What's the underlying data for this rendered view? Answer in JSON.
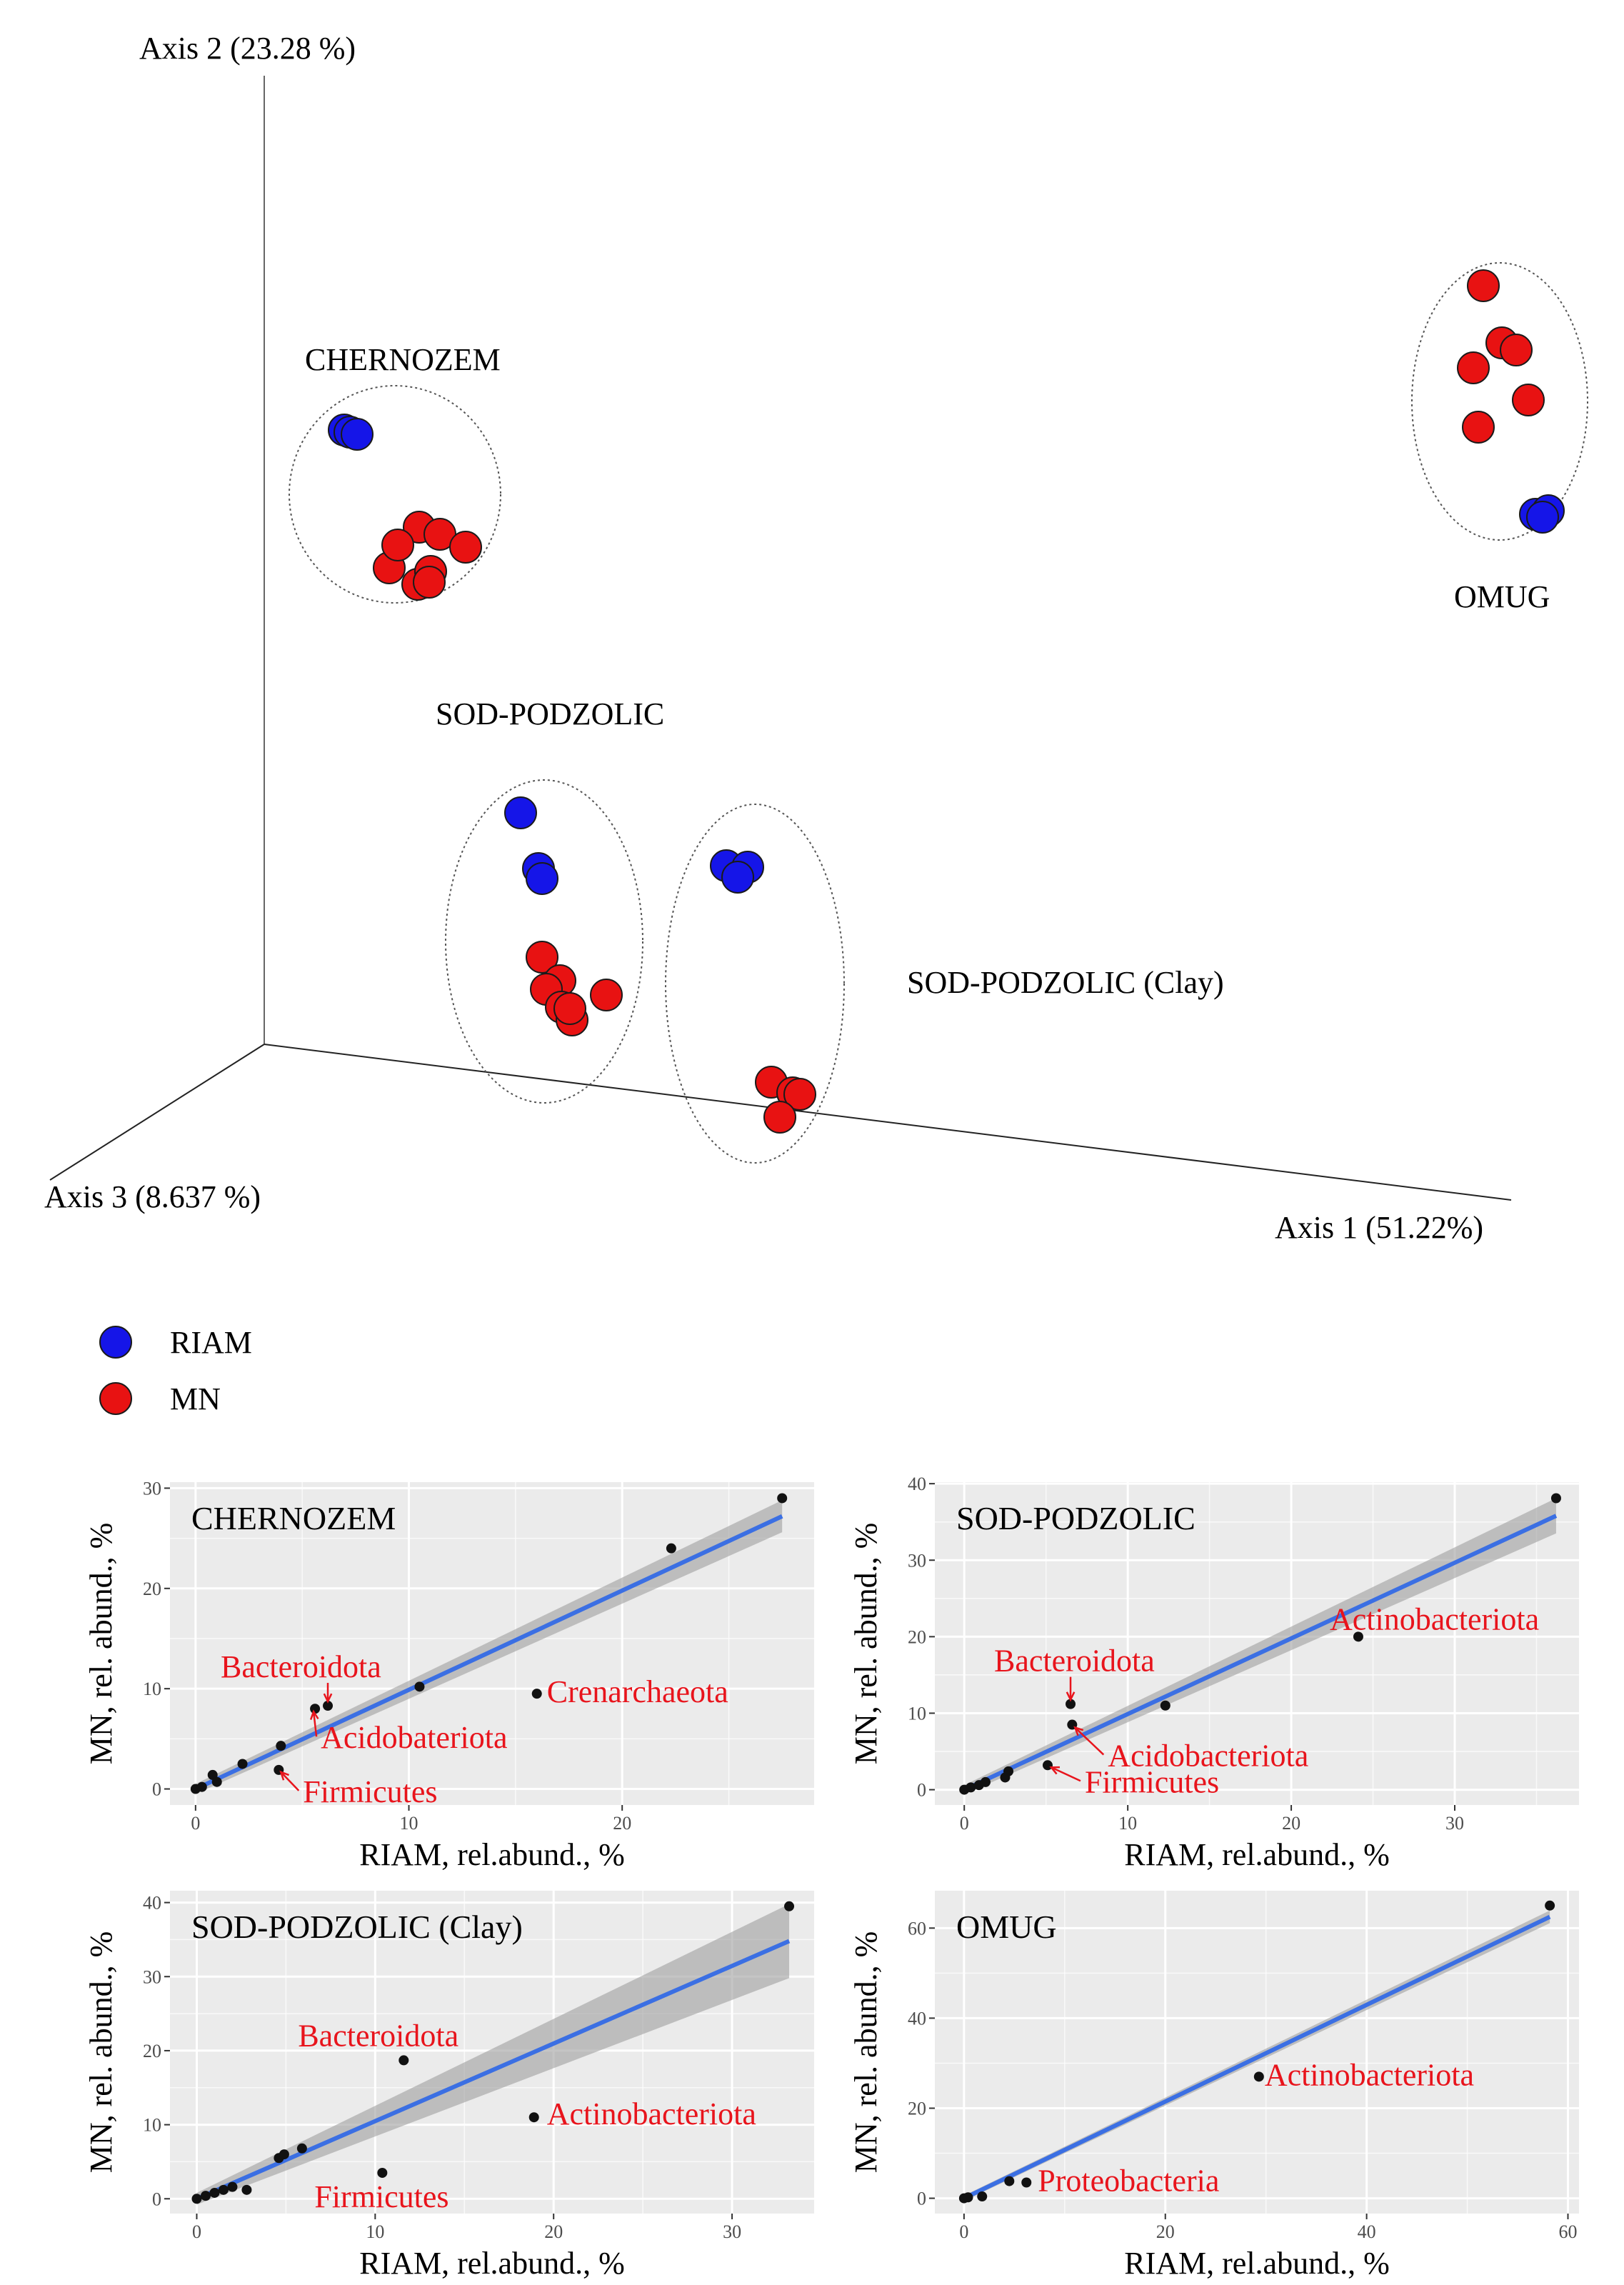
{
  "colors": {
    "riam": "#1515e8",
    "mn": "#e81212",
    "panel_bg": "#ebebeb",
    "grid": "#ffffff",
    "fit_line": "#3b6fe3",
    "ci_band": "#9e9e9e",
    "point": "#111111",
    "annotation": "#e8141c"
  },
  "chart_data": [
    {
      "type": "scatter",
      "id": "pcoa",
      "title": "",
      "axes": {
        "axis1": "Axis 1 (51.22%)",
        "axis2": "Axis 2 (23.28 %)",
        "axis3": "Axis 3 (8.637 %)"
      },
      "legend": {
        "placement": "bottom-left",
        "items": [
          {
            "label": "RIAM",
            "color_key": "riam"
          },
          {
            "label": "MN",
            "color_key": "mn"
          }
        ]
      },
      "groups": [
        {
          "label": "CHERNOZEM",
          "riam_n": 3,
          "mn_n": 8
        },
        {
          "label": "SOD-PODZOLIC",
          "riam_n": 3,
          "mn_n": 7
        },
        {
          "label": "SOD-PODZOLIC (Clay)",
          "riam_n": 3,
          "mn_n": 4
        },
        {
          "label": "OMUG",
          "riam_n": 3,
          "mn_n": 6
        }
      ]
    },
    {
      "type": "scatter",
      "id": "chernozem",
      "title": "CHERNOZEM",
      "xlabel": "RIAM, rel.abund., %",
      "ylabel": "MN, rel. abund., %",
      "xlim": [
        -1.2,
        29
      ],
      "ylim": [
        -1.6,
        30.6
      ],
      "xticks": [
        0,
        10,
        20
      ],
      "yticks": [
        0,
        10,
        20,
        30
      ],
      "fit": {
        "x0": 0,
        "y0": 0,
        "x1": 27.5,
        "y1": 27.2,
        "ci0": 0.5,
        "ci1": 1.6
      },
      "points": [
        [
          0,
          0
        ],
        [
          0.3,
          0.2
        ],
        [
          0.8,
          1.4
        ],
        [
          1,
          0.7
        ],
        [
          2.2,
          2.5
        ],
        [
          4,
          4.3
        ],
        [
          3.9,
          1.9
        ],
        [
          5.6,
          8
        ],
        [
          6.2,
          8.3
        ],
        [
          10.5,
          10.2
        ],
        [
          16,
          9.5
        ],
        [
          22.3,
          24
        ],
        [
          27.5,
          29
        ]
      ],
      "annotations": [
        {
          "text": "Bacteroidota",
          "point": [
            6.2,
            8.3
          ],
          "arrow": true
        },
        {
          "text": "Acidobateriota",
          "point": [
            5.6,
            8
          ],
          "arrow": true
        },
        {
          "text": "Firmicutes",
          "point": [
            3.9,
            1.9
          ],
          "arrow": true
        },
        {
          "text": "Crenarchaeota",
          "point": [
            16,
            9.5
          ],
          "arrow": false
        }
      ]
    },
    {
      "type": "scatter",
      "id": "sod-podzolic",
      "title": "SOD-PODZOLIC",
      "xlabel": "RIAM, rel.abund., %",
      "ylabel": "MN, rel. abund., %",
      "xlim": [
        -1.8,
        37.6
      ],
      "ylim": [
        -2,
        40.2
      ],
      "xticks": [
        0,
        10,
        20,
        30
      ],
      "yticks": [
        0,
        10,
        20,
        30,
        40
      ],
      "fit": {
        "x0": 0,
        "y0": 0,
        "x1": 36.2,
        "y1": 35.8,
        "ci0": 0.6,
        "ci1": 2.3
      },
      "points": [
        [
          0,
          0
        ],
        [
          0.4,
          0.3
        ],
        [
          0.9,
          0.6
        ],
        [
          1.3,
          1
        ],
        [
          2.5,
          1.6
        ],
        [
          2.7,
          2.4
        ],
        [
          5.1,
          3.2
        ],
        [
          6.5,
          11.2
        ],
        [
          6.6,
          8.5
        ],
        [
          12.3,
          11
        ],
        [
          24.1,
          20
        ],
        [
          36.2,
          38.1
        ]
      ],
      "annotations": [
        {
          "text": "Bacteroidota",
          "point": [
            6.5,
            11.2
          ],
          "arrow": true
        },
        {
          "text": "Acidobacteriota",
          "point": [
            6.6,
            8.5
          ],
          "arrow": true
        },
        {
          "text": "Firmicutes",
          "point": [
            5.1,
            3.2
          ],
          "arrow": true
        },
        {
          "text": "Actinobacteriota",
          "point": [
            24.1,
            20
          ],
          "arrow": false
        }
      ]
    },
    {
      "type": "scatter",
      "id": "sod-podzolic-clay",
      "title": "SOD-PODZOLIC (Clay)",
      "xlabel": "RIAM, rel.abund., %",
      "ylabel": "MN, rel. abund., %",
      "xlim": [
        -1.5,
        34.6
      ],
      "ylim": [
        -2,
        41.6
      ],
      "xticks": [
        0,
        10,
        20,
        30
      ],
      "yticks": [
        0,
        10,
        20,
        30,
        40
      ],
      "fit": {
        "x0": 0,
        "y0": 0,
        "x1": 33.2,
        "y1": 34.8,
        "ci0": 0.8,
        "ci1": 5
      },
      "points": [
        [
          0,
          0
        ],
        [
          0.5,
          0.4
        ],
        [
          1,
          0.8
        ],
        [
          1.5,
          1.2
        ],
        [
          2,
          1.6
        ],
        [
          2.8,
          1.2
        ],
        [
          4.6,
          5.5
        ],
        [
          4.9,
          6
        ],
        [
          5.9,
          6.8
        ],
        [
          10.4,
          3.5
        ],
        [
          11.6,
          18.7
        ],
        [
          18.9,
          11
        ],
        [
          33.2,
          39.5
        ]
      ],
      "annotations": [
        {
          "text": "Bacteroidota",
          "point": [
            11.6,
            18.7
          ],
          "arrow": false
        },
        {
          "text": "Actinobacteriota",
          "point": [
            18.9,
            11
          ],
          "arrow": false
        },
        {
          "text": "Firmicutes",
          "point": [
            10.4,
            3.5
          ],
          "arrow": false
        }
      ]
    },
    {
      "type": "scatter",
      "id": "omug",
      "title": "OMUG",
      "xlabel": "RIAM, rel.abund., %",
      "ylabel": "MN, rel. abund., %",
      "xlim": [
        -2.9,
        61.1
      ],
      "ylim": [
        -3.4,
        68.3
      ],
      "xticks": [
        0,
        20,
        40,
        60
      ],
      "yticks": [
        0,
        20,
        40,
        60
      ],
      "fit": {
        "x0": 0,
        "y0": 0,
        "x1": 58.2,
        "y1": 62.5,
        "ci0": 0.6,
        "ci1": 1.4
      },
      "points": [
        [
          0,
          0
        ],
        [
          0.4,
          0.2
        ],
        [
          1.8,
          0.4
        ],
        [
          4.5,
          3.8
        ],
        [
          6.2,
          3.5
        ],
        [
          29.3,
          27
        ],
        [
          58.2,
          65
        ]
      ],
      "annotations": [
        {
          "text": "Actinobacteriota",
          "point": [
            29.3,
            27
          ],
          "arrow": false
        },
        {
          "text": "Proteobacteria",
          "point": [
            6.2,
            3.5
          ],
          "arrow": false
        }
      ]
    }
  ]
}
